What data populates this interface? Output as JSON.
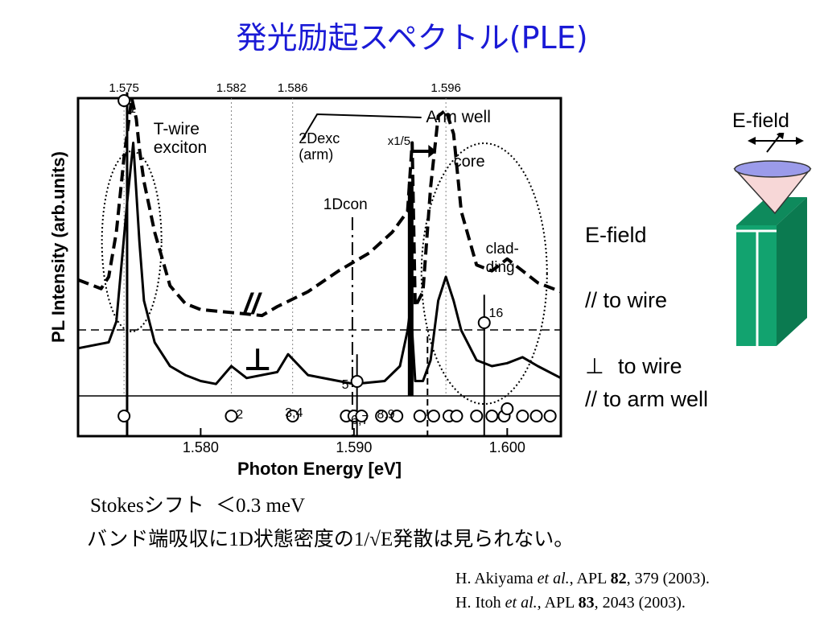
{
  "slide": {
    "title": "発光励起スペクトル(PLE)",
    "stokes_label": "Stokes",
    "stokes_jp": "シフト",
    "stokes_value": "＜0.3 meV",
    "line2_a": "バンド端吸収に",
    "line2_b": "1D",
    "line2_c": "状態密度の",
    "line2_d": "1/√E",
    "line2_e": "発散は見られない。",
    "refs": [
      {
        "authors": "H. Akiyama",
        "etal": "et al.",
        "journal": ", APL ",
        "vol": "82",
        "rest": ", 379 (2003)."
      },
      {
        "authors": "H. Itoh",
        "etal": "et al.,",
        "journal": " APL ",
        "vol": "83",
        "rest": ", 2043 (2003)."
      }
    ]
  },
  "side_notes": {
    "efield_top": "E-field",
    "efield_mid": "E-field",
    "parallel": "// to wire",
    "perp_symbol": "⊥",
    "perp_text": "to wire",
    "arm": "// to arm well"
  },
  "colors": {
    "title": "#1a1ad6",
    "wire_green": "#12a36f",
    "cone_fill": "#f7d7d7",
    "disk_fill": "#9b9bea"
  },
  "chart_data": {
    "type": "line",
    "xlabel": "Photon Energy [eV]",
    "ylabel": "PL Intensity (arb.units)",
    "xlim": [
      1.572,
      1.6035
    ],
    "x_ticks": [
      "1.580",
      "1.590",
      "1.600"
    ],
    "x_tick_values": [
      1.58,
      1.59,
      1.6
    ],
    "top_ticks": [
      "1.575",
      "1.582",
      "1.586",
      "1.596"
    ],
    "top_tick_values": [
      1.575,
      1.582,
      1.586,
      1.596
    ],
    "series": [
      {
        "style": "dashed",
        "x": [
          1.572,
          1.5735,
          1.574,
          1.5745,
          1.575,
          1.5755,
          1.5758,
          1.576,
          1.5763,
          1.577,
          1.578,
          1.579,
          1.58,
          1.582,
          1.584,
          1.585,
          1.587,
          1.589,
          1.591,
          1.5925,
          1.5935,
          1.5938,
          1.594,
          1.5945,
          1.595,
          1.5955,
          1.596,
          1.5965,
          1.597,
          1.598,
          1.599,
          1.6,
          1.601,
          1.602,
          1.6035
        ],
        "y": [
          0.39,
          0.36,
          0.4,
          0.55,
          0.8,
          1.0,
          0.93,
          0.83,
          0.72,
          0.55,
          0.37,
          0.31,
          0.29,
          0.28,
          0.27,
          0.3,
          0.35,
          0.42,
          0.48,
          0.55,
          0.62,
          0.85,
          0.3,
          0.35,
          0.7,
          0.94,
          0.96,
          0.88,
          0.62,
          0.44,
          0.42,
          0.46,
          0.42,
          0.38,
          0.35
        ]
      },
      {
        "style": "solid",
        "x": [
          1.572,
          1.574,
          1.5745,
          1.5752,
          1.5756,
          1.576,
          1.5763,
          1.577,
          1.578,
          1.579,
          1.58,
          1.581,
          1.582,
          1.583,
          1.585,
          1.5857,
          1.587,
          1.589,
          1.59,
          1.592,
          1.593,
          1.5935,
          1.5937,
          1.594,
          1.5945,
          1.595,
          1.5955,
          1.596,
          1.5965,
          1.597,
          1.598,
          1.599,
          1.6,
          1.601,
          1.602,
          1.6035
        ],
        "y": [
          0.16,
          0.18,
          0.25,
          0.65,
          0.85,
          0.52,
          0.32,
          0.18,
          0.1,
          0.07,
          0.05,
          0.04,
          0.1,
          0.06,
          0.08,
          0.14,
          0.07,
          0.05,
          0.04,
          0.05,
          0.1,
          0.22,
          0.3,
          0.05,
          0.05,
          0.12,
          0.32,
          0.4,
          0.32,
          0.22,
          0.12,
          0.1,
          0.11,
          0.13,
          0.1,
          0.06
        ]
      }
    ],
    "circle_markers": {
      "x": [
        1.575,
        1.582,
        1.586,
        1.5895,
        1.59,
        1.5905,
        1.5918,
        1.5928,
        1.5943,
        1.5952,
        1.5962,
        1.5967,
        1.598,
        1.599,
        1.5998,
        1.601,
        1.6019,
        1.6028
      ],
      "labels": [
        "1",
        "2",
        "3,4",
        "6,7",
        "8,9",
        "16",
        "5"
      ]
    },
    "annotations": [
      "T-wire exciton",
      "2Dexc (arm)",
      "x1/5",
      "Arm well",
      "core",
      "1Dcon",
      "clad- ding",
      "//",
      "⊥"
    ]
  }
}
